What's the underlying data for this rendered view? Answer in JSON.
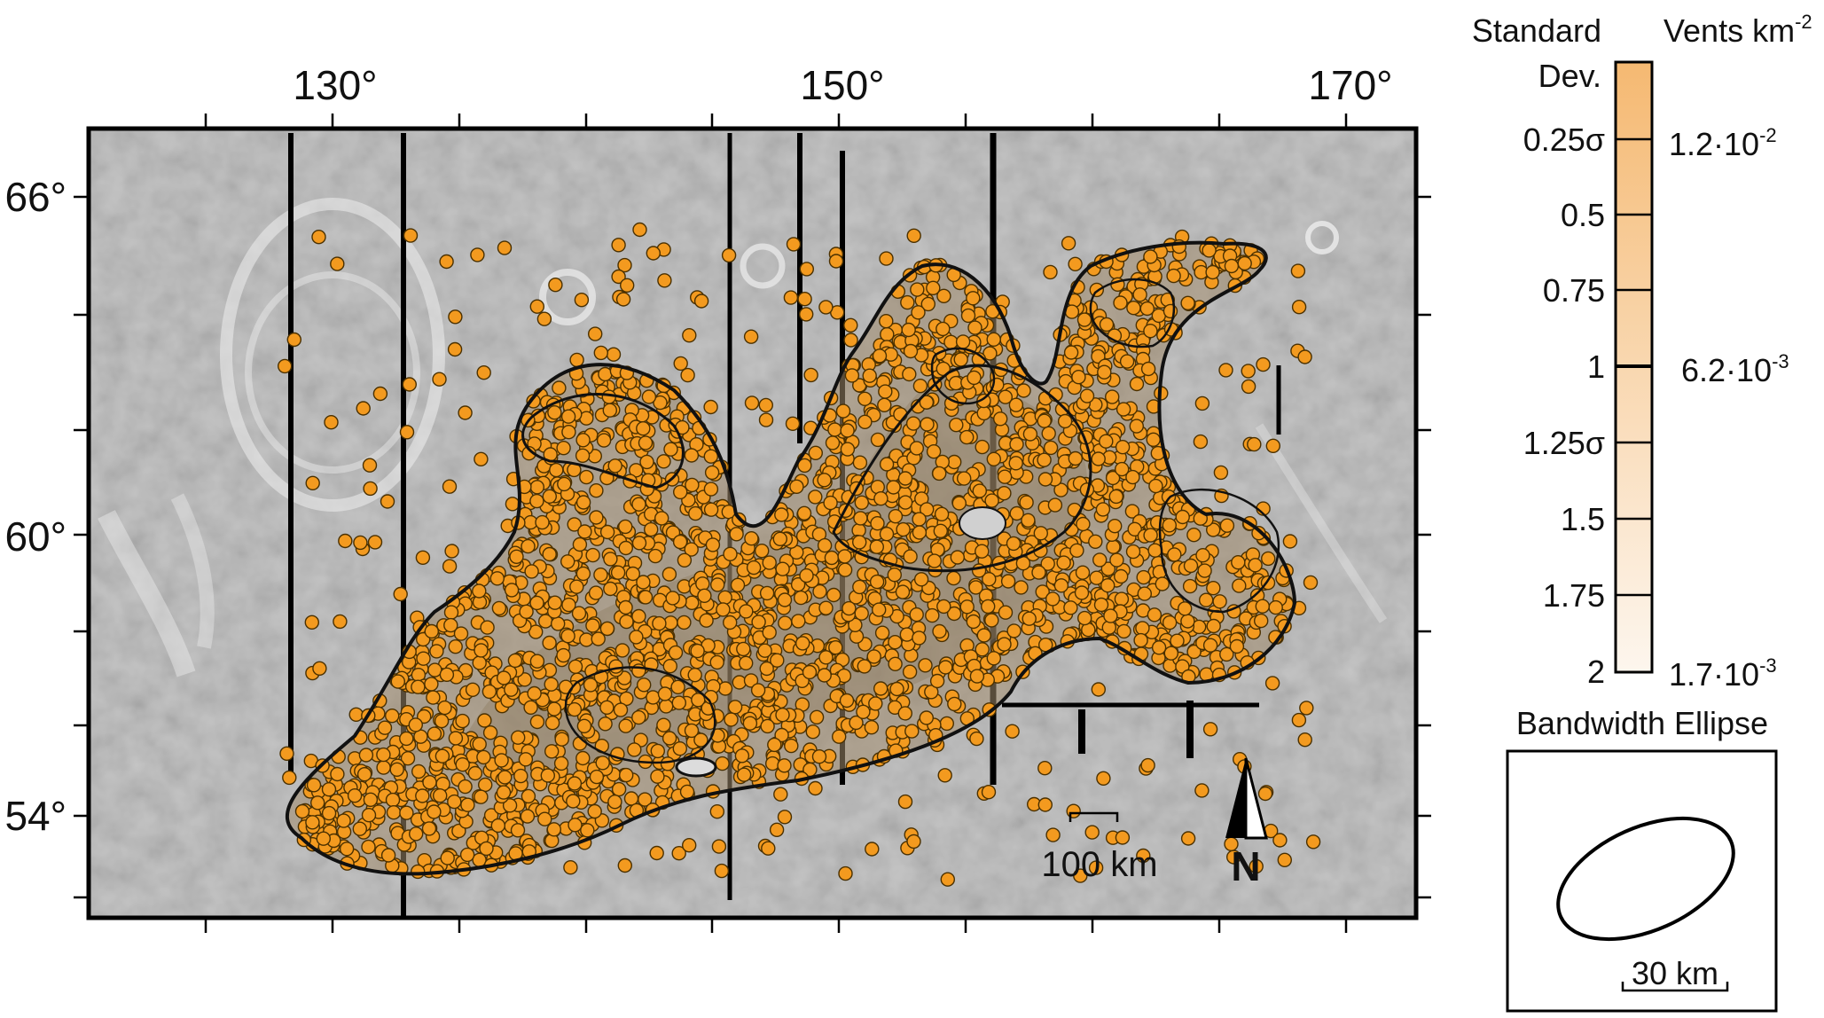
{
  "map": {
    "longitude_labels": [
      "130°",
      "150°",
      "170°"
    ],
    "latitude_labels": [
      "66°",
      "60°",
      "54°"
    ],
    "north_arrow_label": "N",
    "scale_bar_label": "100 km"
  },
  "legend": {
    "std_dev_header_line1": "Standard",
    "std_dev_header_line2": "Dev.",
    "density_header": "Vents km",
    "density_header_exponent": "-2",
    "std_dev_labels": [
      "0.25σ",
      "0.5",
      "0.75",
      "1",
      "1.25σ",
      "1.5",
      "1.75",
      "2"
    ],
    "density_labels": [
      {
        "mantissa": "1.2·10",
        "exponent": "-2"
      },
      {
        "mantissa": "6.2·10",
        "exponent": "-3"
      },
      {
        "mantissa": "1.7·10",
        "exponent": "-3"
      }
    ],
    "colorbar_top_color": "#f5b972",
    "colorbar_bottom_color": "#fdf6ee"
  },
  "bandwidth": {
    "title": "Bandwidth Ellipse",
    "scale_label": "30 km"
  },
  "colors": {
    "vent_fill": "#f39a1f",
    "vent_stroke": "#4a3000",
    "contour": "#111111",
    "basemap": "#b8b8b8"
  }
}
